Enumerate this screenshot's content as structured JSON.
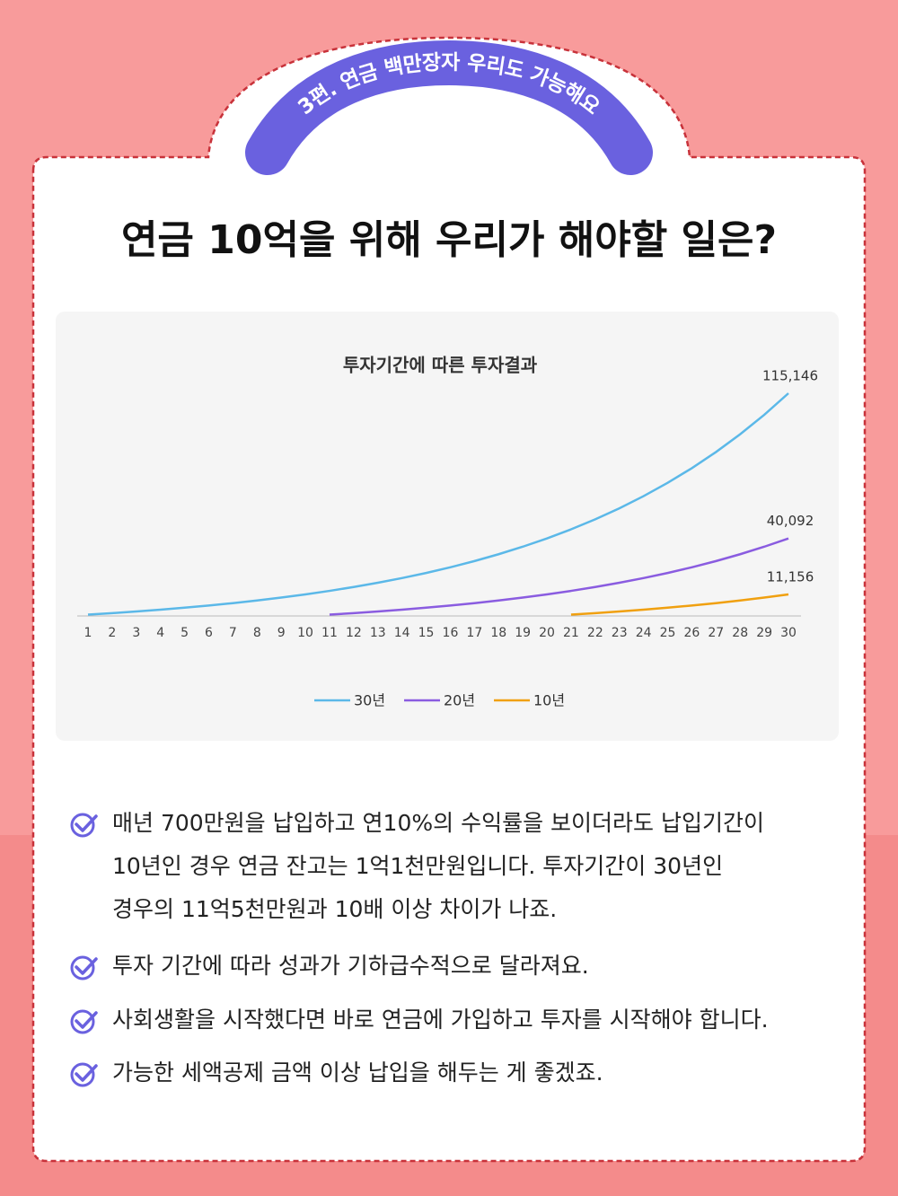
{
  "badge": "3편. 연금 백만장자 우리도 가능해요",
  "title": "연금 10억을 위해 우리가 해야할 일은?",
  "chart_data": {
    "type": "line",
    "title": "투자기간에 따른 투자결과",
    "categories": [
      "1",
      "2",
      "3",
      "4",
      "5",
      "6",
      "7",
      "8",
      "9",
      "10",
      "11",
      "12",
      "13",
      "14",
      "15",
      "16",
      "17",
      "18",
      "19",
      "20",
      "21",
      "22",
      "23",
      "24",
      "25",
      "26",
      "27",
      "28",
      "29",
      "30"
    ],
    "legend": "bottom",
    "series": [
      {
        "name": "30년",
        "color": "#5bb8e8",
        "values": [
          700,
          1470,
          2317,
          3249,
          4274,
          5401,
          6641,
          8005,
          9506,
          11156,
          12972,
          14969,
          17166,
          19582,
          22241,
          25165,
          28381,
          31919,
          35811,
          40092,
          44802,
          49982,
          55680,
          61948,
          68843,
          76427,
          84770,
          93947,
          104042,
          115146
        ],
        "value_labels": [
          null,
          null,
          null,
          null,
          null,
          null,
          null,
          null,
          null,
          null,
          null,
          null,
          null,
          null,
          null,
          null,
          null,
          null,
          null,
          null,
          null,
          null,
          null,
          null,
          null,
          null,
          null,
          null,
          null,
          "115,146"
        ]
      },
      {
        "name": "20년",
        "color": "#8a5ce0",
        "values": [
          null,
          null,
          null,
          null,
          null,
          null,
          null,
          null,
          null,
          null,
          700,
          1470,
          2317,
          3249,
          4274,
          5401,
          6641,
          8005,
          9506,
          11156,
          12972,
          14969,
          17166,
          19582,
          22241,
          25165,
          28381,
          31919,
          35811,
          40092
        ],
        "value_labels": [
          null,
          null,
          null,
          null,
          null,
          null,
          null,
          null,
          null,
          null,
          null,
          null,
          null,
          null,
          null,
          null,
          null,
          null,
          null,
          null,
          null,
          null,
          null,
          null,
          null,
          null,
          null,
          null,
          null,
          "40,092"
        ]
      },
      {
        "name": "10년",
        "color": "#f0a010",
        "values": [
          null,
          null,
          null,
          null,
          null,
          null,
          null,
          null,
          null,
          null,
          null,
          null,
          null,
          null,
          null,
          null,
          null,
          null,
          null,
          null,
          700,
          1470,
          2317,
          3249,
          4274,
          5401,
          6641,
          8005,
          9506,
          11156
        ],
        "value_labels": [
          null,
          null,
          null,
          null,
          null,
          null,
          null,
          null,
          null,
          null,
          null,
          null,
          null,
          null,
          null,
          null,
          null,
          null,
          null,
          null,
          null,
          null,
          null,
          null,
          null,
          null,
          null,
          null,
          null,
          "11,156"
        ]
      }
    ]
  },
  "bullets": [
    [
      "매년 700만원을 납입하고 연10%의 수익률을 보이더라도 납입기간이",
      "10년인 경우 연금 잔고는 1억1천만원입니다. 투자기간이 30년인",
      "경우의 11억5천만원과 10배 이상 차이가 나죠."
    ],
    [
      "투자 기간에 따라 성과가 기하급수적으로 달라져요."
    ],
    [
      "사회생활을 시작했다면 바로 연금에 가입하고 투자를 시작해야 합니다."
    ],
    [
      "가능한 세액공제 금액 이상 납입을 해두는 게 좋겠죠."
    ]
  ]
}
